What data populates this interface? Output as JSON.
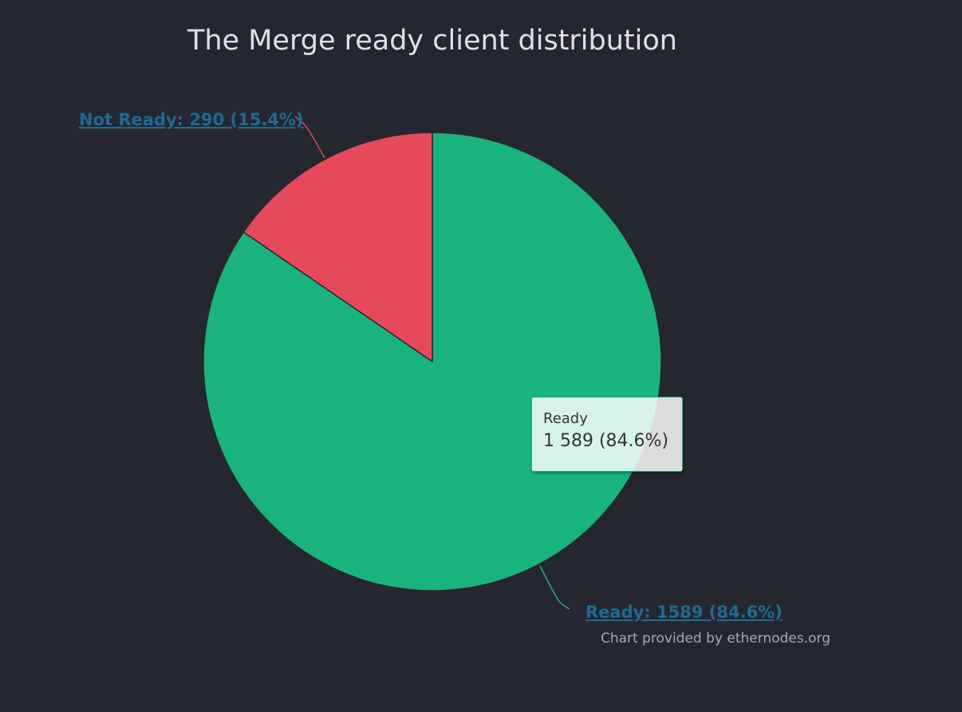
{
  "chart_data": {
    "type": "pie",
    "title": "The Merge ready client distribution",
    "slices": [
      {
        "name": "Ready",
        "value": 1589,
        "percent": 84.6,
        "color": "#1ab37e",
        "label": "Ready: 1589 (84.6%)"
      },
      {
        "name": "Not Ready",
        "value": 290,
        "percent": 15.4,
        "color": "#e5495a",
        "label": "Not Ready: 290 (15.4%)"
      }
    ],
    "tooltip": {
      "series": "Ready",
      "value_text": "1 589 (84.6%)"
    },
    "credits": "Chart provided by ethernodes.org",
    "colors": {
      "background": "#252730",
      "label_link": "#1f6a92",
      "slice_border": "#252730"
    }
  }
}
